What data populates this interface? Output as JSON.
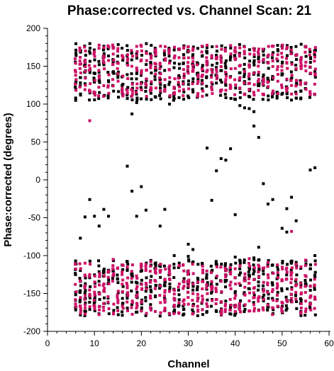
{
  "chart_data": {
    "type": "scatter",
    "title": "Phase:corrected vs. Channel Scan: 21",
    "xlabel": "Channel",
    "ylabel": "Phase:corrected (degrees)",
    "xlim": [
      0,
      60
    ],
    "ylim": [
      -200,
      200
    ],
    "x_ticks": [
      0,
      10,
      20,
      30,
      40,
      50,
      60
    ],
    "y_ticks": [
      -200,
      -150,
      -100,
      -50,
      0,
      50,
      100,
      150,
      200
    ],
    "grid": false,
    "legend": "none",
    "channels": [
      6,
      57
    ],
    "series": [
      {
        "color": "#000000",
        "band_upper": [
          105,
          180
        ],
        "band_lower": [
          -180,
          -105
        ],
        "points": [
          [
            6,
            105
          ],
          [
            6,
            108
          ],
          [
            7,
            -77
          ],
          [
            8,
            -49
          ],
          [
            9,
            -26
          ],
          [
            10,
            -48
          ],
          [
            11,
            -61
          ],
          [
            12,
            -39
          ],
          [
            13,
            -48
          ],
          [
            17,
            18
          ],
          [
            18,
            -15
          ],
          [
            18,
            87
          ],
          [
            19,
            102
          ],
          [
            19,
            -48
          ],
          [
            20,
            -9
          ],
          [
            21,
            -40
          ],
          [
            24,
            -61
          ],
          [
            25,
            -39
          ],
          [
            26,
            100
          ],
          [
            30,
            -85
          ],
          [
            31,
            -92
          ],
          [
            34,
            42
          ],
          [
            35,
            -27
          ],
          [
            36,
            12
          ],
          [
            37,
            28
          ],
          [
            38,
            26
          ],
          [
            39,
            41
          ],
          [
            40,
            -46
          ],
          [
            41,
            98
          ],
          [
            42,
            95
          ],
          [
            43,
            94
          ],
          [
            44,
            71
          ],
          [
            44,
            90
          ],
          [
            45,
            56
          ],
          [
            45,
            -89
          ],
          [
            46,
            -5
          ],
          [
            47,
            -32
          ],
          [
            48,
            -26
          ],
          [
            50,
            -64
          ],
          [
            51,
            -69
          ],
          [
            51,
            -38
          ],
          [
            52,
            -23
          ],
          [
            53,
            -54
          ],
          [
            56,
            13
          ],
          [
            57,
            16
          ],
          [
            57,
            -100
          ],
          [
            30,
            -101
          ],
          [
            27,
            -100
          ],
          [
            40,
            -102
          ],
          [
            44,
            -103
          ]
        ]
      },
      {
        "color": "#cc1166",
        "band_upper": [
          110,
          178
        ],
        "band_lower": [
          -178,
          -110
        ],
        "points": [
          [
            9,
            78
          ],
          [
            52,
            -68
          ],
          [
            8,
            -110
          ],
          [
            14,
            -105
          ],
          [
            22,
            -108
          ],
          [
            43,
            -104
          ],
          [
            47,
            -109
          ],
          [
            55,
            -106
          ]
        ]
      }
    ]
  }
}
